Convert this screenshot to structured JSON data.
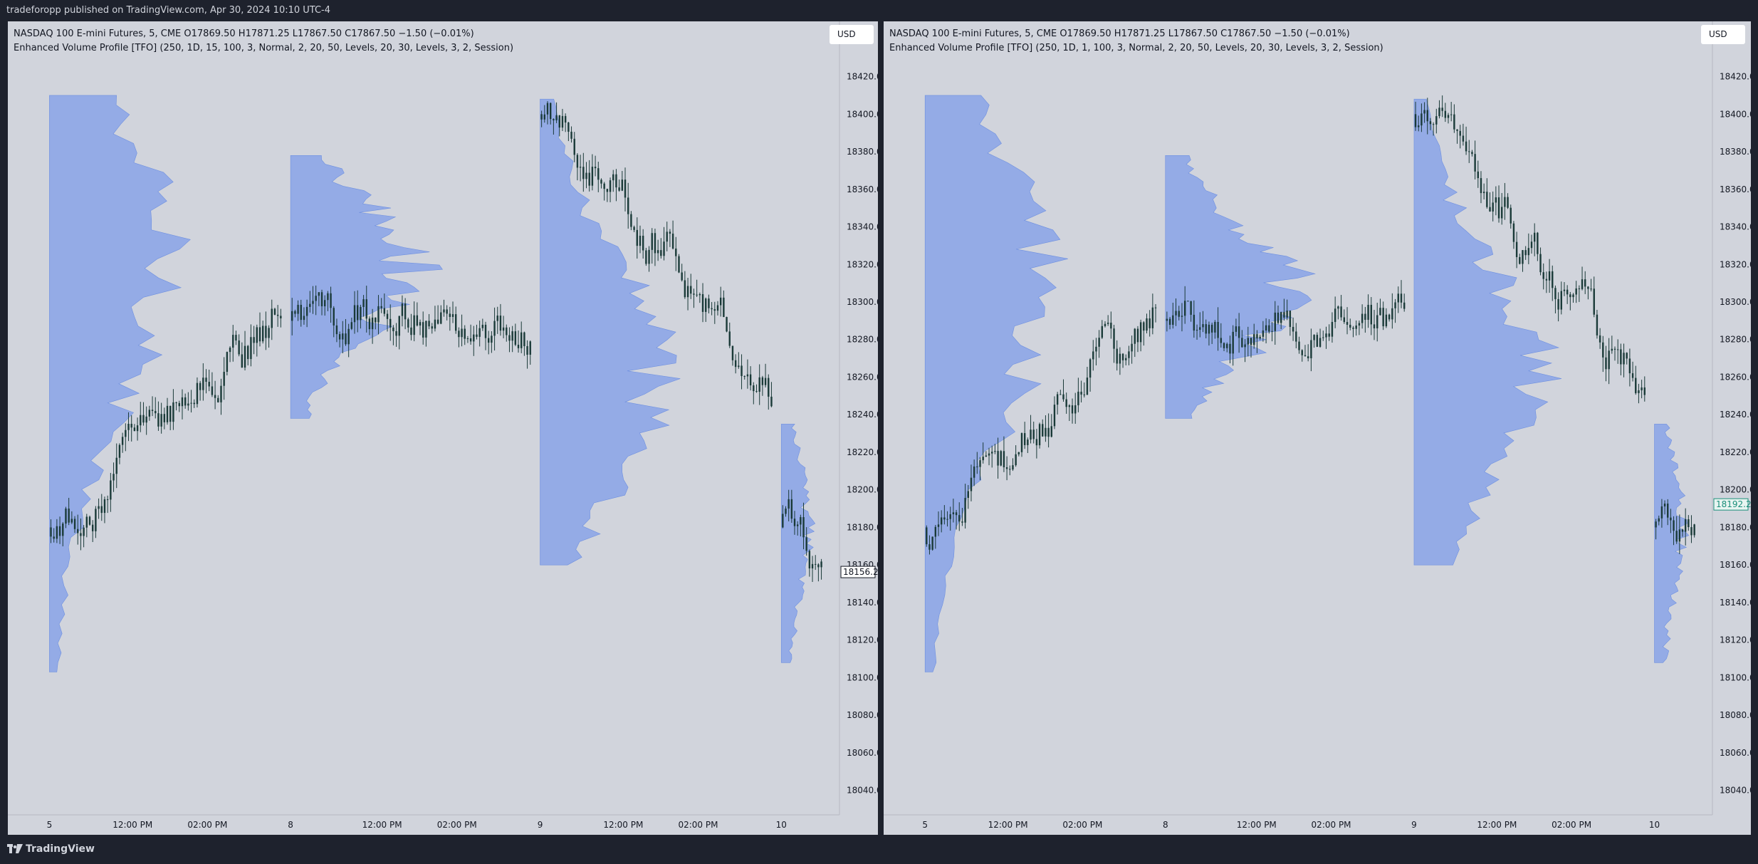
{
  "header": {
    "published_text": "tradeforopp published on TradingView.com, Apr 30, 2024 10:10 UTC-4"
  },
  "footer": {
    "brand": "TradingView"
  },
  "colors": {
    "background": "#d1d4dc",
    "frame": "#1e222d",
    "profile_fill": "#7f9ee9",
    "candle": "#1a3a38",
    "right_price_badge": "#1b8f7a"
  },
  "chart_data": [
    {
      "type": "candlestick_with_volume_profile",
      "symbol_line": "NASDAQ 100 E-mini Futures, 5, CME  O17869.50  H17871.25  L17867.50  C17867.50  −1.50 (−0.01%)",
      "indicator_line": "Enhanced Volume Profile [TFO] (250, 1D, 15, 100, 3, Normal, 2, 20, 50, Levels, 20, 30, Levels, 3, 2, Session)",
      "currency": "USD",
      "ylim": [
        18030,
        18435
      ],
      "y_ticks": [
        "18420.00",
        "18400.00",
        "18380.00",
        "18360.00",
        "18340.00",
        "18320.00",
        "18300.00",
        "18280.00",
        "18260.00",
        "18240.00",
        "18220.00",
        "18200.00",
        "18180.00",
        "18160.00",
        "18140.00",
        "18120.00",
        "18100.00",
        "18080.00",
        "18060.00",
        "18040.00"
      ],
      "x_ticks": [
        "5",
        "12:00 PM",
        "02:00 PM",
        "8",
        "12:00 PM",
        "02:00 PM",
        "9",
        "12:00 PM",
        "02:00 PM",
        "10"
      ],
      "last_price_label": "18156.25",
      "last_price": 18156.25,
      "sessions": [
        {
          "label": "5",
          "start": 0.05,
          "end": 0.33,
          "open": 18180,
          "close": 18300,
          "high": 18410,
          "low": 18070,
          "profile_low": 18103,
          "profile_high": 18410,
          "poc": 18320
        },
        {
          "label": "8",
          "start": 0.34,
          "end": 0.63,
          "open": 18290,
          "close": 18290,
          "high": 18385,
          "low": 18238,
          "profile_low": 18238,
          "profile_high": 18378,
          "poc": 18318
        },
        {
          "label": "9",
          "start": 0.64,
          "end": 0.92,
          "open": 18400,
          "close": 18250,
          "high": 18410,
          "low": 18160,
          "profile_low": 18160,
          "profile_high": 18408,
          "poc": 18262
        },
        {
          "label": "10",
          "start": 0.93,
          "end": 0.98,
          "open": 18180,
          "close": 18156,
          "high": 18200,
          "low": 18108,
          "profile_low": 18108,
          "profile_high": 18235,
          "poc": 18180
        }
      ]
    },
    {
      "type": "candlestick_with_volume_profile",
      "symbol_line": "NASDAQ 100 E-mini Futures, 5, CME  O17869.50  H17871.25  L17867.50  C17867.50  −1.50 (−0.01%)",
      "indicator_line": "Enhanced Volume Profile [TFO] (250, 1D, 1, 100, 3, Normal, 2, 20, 50, Levels, 20, 30, Levels, 3, 2, Session)",
      "currency": "USD",
      "ylim": [
        18030,
        18435
      ],
      "y_ticks": [
        "18420.00",
        "18400.00",
        "18380.00",
        "18360.00",
        "18340.00",
        "18320.00",
        "18300.00",
        "18280.00",
        "18260.00",
        "18240.00",
        "18220.00",
        "18200.00",
        "18180.00",
        "18160.00",
        "18140.00",
        "18120.00",
        "18100.00",
        "18080.00",
        "18060.00",
        "18040.00"
      ],
      "x_ticks": [
        "5",
        "12:00 PM",
        "02:00 PM",
        "8",
        "12:00 PM",
        "02:00 PM",
        "9",
        "12:00 PM",
        "02:00 PM",
        "10"
      ],
      "last_price_label": "18192.25",
      "last_price": 18192.25,
      "sessions": [
        {
          "label": "5",
          "start": 0.05,
          "end": 0.33,
          "open": 18180,
          "close": 18300,
          "high": 18410,
          "low": 18070,
          "profile_low": 18103,
          "profile_high": 18410,
          "poc": 18308
        },
        {
          "label": "8",
          "start": 0.34,
          "end": 0.63,
          "open": 18290,
          "close": 18290,
          "high": 18385,
          "low": 18238,
          "profile_low": 18238,
          "profile_high": 18378,
          "poc": 18305
        },
        {
          "label": "9",
          "start": 0.64,
          "end": 0.92,
          "open": 18400,
          "close": 18250,
          "high": 18410,
          "low": 18160,
          "profile_low": 18160,
          "profile_high": 18408,
          "poc": 18262
        },
        {
          "label": "10",
          "start": 0.93,
          "end": 0.98,
          "open": 18180,
          "close": 18192,
          "high": 18200,
          "low": 18108,
          "profile_low": 18108,
          "profile_high": 18235,
          "poc": 18180
        }
      ]
    }
  ]
}
